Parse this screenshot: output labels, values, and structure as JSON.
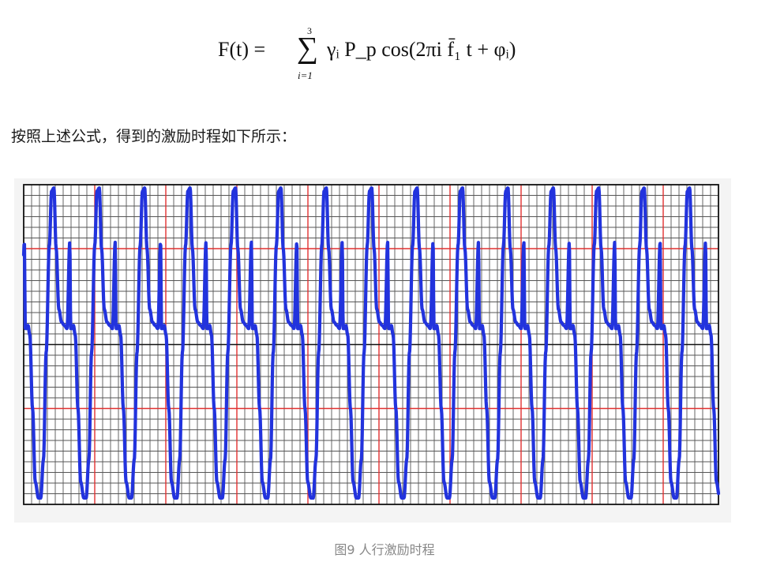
{
  "formula": {
    "lhs": "F(t) = ",
    "sum_upper": "3",
    "sum_lower": "i=1",
    "summand": "γᵢ P_p cos(2πi f̄₁ t + φᵢ)"
  },
  "intro_text": "按照上述公式，得到的激励时程如下所示：",
  "caption": "图9  人行激励时程",
  "chart_data": {
    "type": "line",
    "title": "",
    "xlabel": "",
    "ylabel": "",
    "grid": true,
    "axes_visible": false,
    "line_color": "#2233dd",
    "grid_minor_color": "#555555",
    "grid_major_color": "#e03030",
    "grid_center_color": "#111111",
    "xlim": [
      0,
      1
    ],
    "ylim": [
      -1,
      1
    ],
    "cycles": 15.3,
    "phase_offset": -0.015,
    "series": [
      {
        "waveform_cycle": [
          [
            0.0,
            0.64
          ],
          [
            0.02,
            0.1
          ],
          [
            0.05,
            0.1
          ],
          [
            0.08,
            0.12
          ],
          [
            0.12,
            0.06
          ],
          [
            0.18,
            -0.4
          ],
          [
            0.24,
            -0.86
          ],
          [
            0.31,
            -0.96
          ],
          [
            0.36,
            -0.96
          ],
          [
            0.42,
            -0.72
          ],
          [
            0.48,
            -0.05
          ],
          [
            0.55,
            0.62
          ],
          [
            0.6,
            0.96
          ],
          [
            0.65,
            0.98
          ],
          [
            0.7,
            0.6
          ],
          [
            0.76,
            0.22
          ],
          [
            0.82,
            0.14
          ],
          [
            0.88,
            0.12
          ],
          [
            0.94,
            0.1
          ],
          [
            1.0,
            0.64
          ]
        ]
      }
    ]
  }
}
